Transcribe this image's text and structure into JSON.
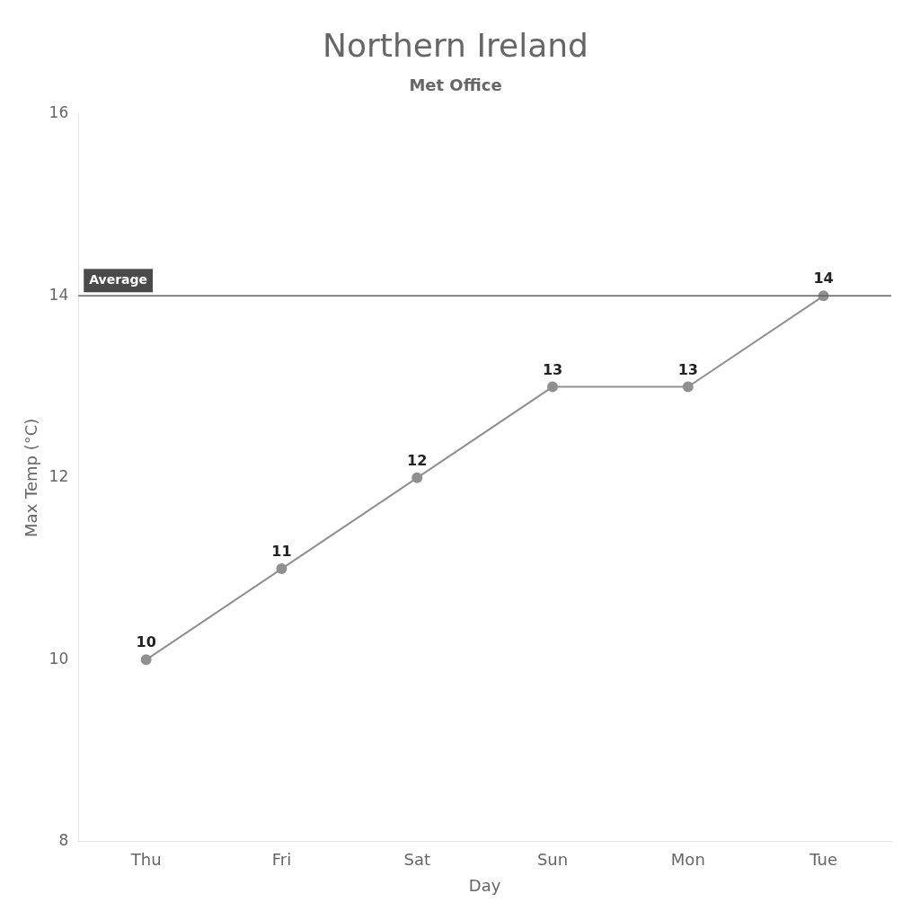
{
  "chart_data": {
    "type": "line",
    "title": "Northern Ireland",
    "subtitle": "Met Office",
    "categories": [
      "Thu",
      "Fri",
      "Sat",
      "Sun",
      "Mon",
      "Tue"
    ],
    "values": [
      10,
      11,
      12,
      13,
      13,
      14
    ],
    "color": "#909090",
    "xlabel": "Day",
    "ylabel": "Max Temp (°C)",
    "ylim": [
      8,
      16
    ],
    "yticks": [
      8,
      10,
      12,
      14,
      16
    ],
    "annotations": [
      {
        "y": 14,
        "text": "Average"
      }
    ],
    "data_labels": true,
    "grid": false
  }
}
